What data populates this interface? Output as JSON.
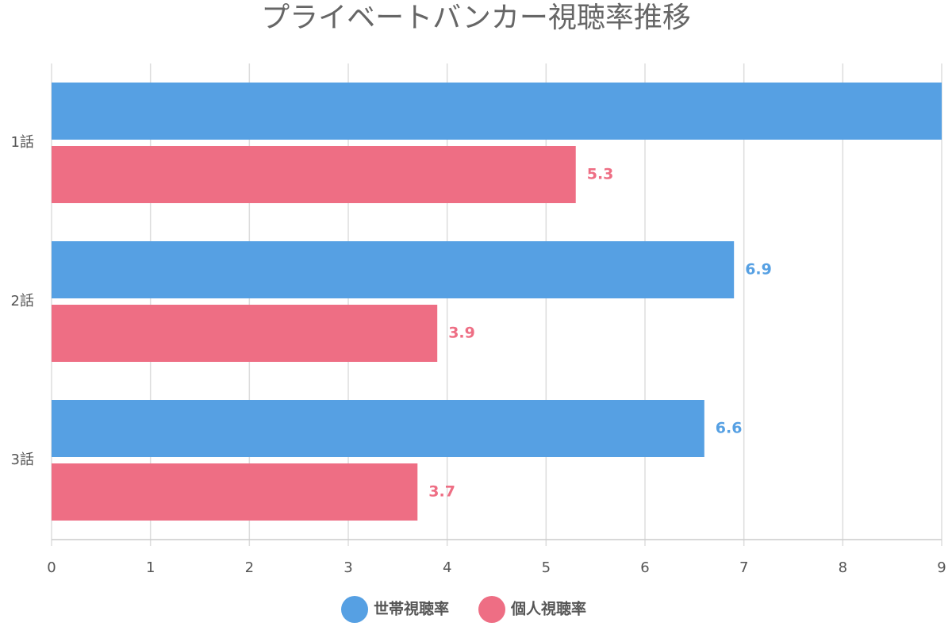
{
  "chart_data": {
    "type": "bar",
    "orientation": "horizontal",
    "title": "プライベートバンカー視聴率推移",
    "categories": [
      "1話",
      "2話",
      "3話"
    ],
    "series": [
      {
        "name": "世帯視聴率",
        "color": "#56a0e3",
        "values": [
          9,
          6.9,
          6.6
        ]
      },
      {
        "name": "個人視聴率",
        "color": "#ee6e84",
        "values": [
          5.3,
          3.9,
          3.7
        ]
      }
    ],
    "xlim": [
      0,
      9
    ],
    "xticks": [
      0,
      1,
      2,
      3,
      4,
      5,
      6,
      7,
      8,
      9
    ],
    "grid": true,
    "legend": "bottom"
  }
}
